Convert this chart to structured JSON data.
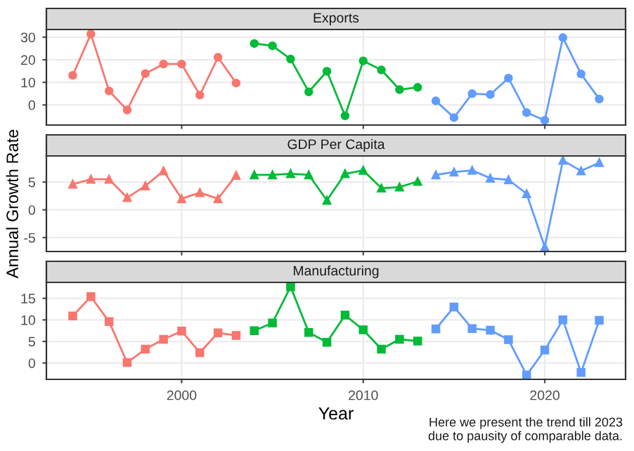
{
  "chart_data": [
    {
      "type": "line",
      "title": "Exports",
      "marker": "circle",
      "grid": true,
      "tick_labels": "y",
      "xlim": [
        1992.55,
        2024.45
      ],
      "xticks": [
        2000,
        2010,
        2020
      ],
      "ylim": [
        -8.9,
        33.4
      ],
      "yticks": [
        0,
        10,
        20,
        30
      ],
      "series": [
        {
          "color": "#f8766d",
          "x": [
            1994,
            1995,
            1996,
            1997,
            1998,
            1999,
            2000,
            2001,
            2002,
            2003
          ],
          "values": [
            13.1,
            31.4,
            6.2,
            -2.2,
            13.9,
            18.1,
            18.1,
            4.4,
            21.1,
            9.7
          ]
        },
        {
          "color": "#00ba38",
          "x": [
            2004,
            2005,
            2006,
            2007,
            2008,
            2009,
            2010,
            2011,
            2012,
            2013
          ],
          "values": [
            27.2,
            26.2,
            20.3,
            5.8,
            14.9,
            -4.8,
            19.5,
            15.5,
            6.8,
            7.8
          ]
        },
        {
          "color": "#619cff",
          "x": [
            2014,
            2015,
            2016,
            2017,
            2018,
            2019,
            2020,
            2021,
            2022,
            2023
          ],
          "values": [
            1.8,
            -5.6,
            5.0,
            4.6,
            11.9,
            -3.4,
            -6.8,
            29.8,
            13.7,
            2.6
          ]
        }
      ]
    },
    {
      "type": "line",
      "title": "GDP Per Capita",
      "ylabel": "Annual Growth Rate",
      "marker": "triangle",
      "grid": true,
      "tick_labels": "y",
      "xlim": [
        1992.55,
        2024.45
      ],
      "xticks": [
        2000,
        2010,
        2020
      ],
      "ylim": [
        -7.5,
        9.7
      ],
      "yticks": [
        -5,
        0,
        5
      ],
      "series": [
        {
          "color": "#f8766d",
          "x": [
            1994,
            1995,
            1996,
            1997,
            1998,
            1999,
            2000,
            2001,
            2002,
            2003
          ],
          "values": [
            4.6,
            5.5,
            5.5,
            2.2,
            4.3,
            7.0,
            2.0,
            3.1,
            2.0,
            6.2
          ]
        },
        {
          "color": "#00ba38",
          "x": [
            2004,
            2005,
            2006,
            2007,
            2008,
            2009,
            2010,
            2011,
            2012,
            2013
          ],
          "values": [
            6.3,
            6.3,
            6.5,
            6.3,
            1.7,
            6.5,
            7.1,
            3.9,
            4.1,
            5.1
          ]
        },
        {
          "color": "#619cff",
          "x": [
            2014,
            2015,
            2016,
            2017,
            2018,
            2019,
            2020,
            2021,
            2022,
            2023
          ],
          "values": [
            6.3,
            6.8,
            7.1,
            5.7,
            5.4,
            2.9,
            -6.7,
            8.9,
            7.0,
            8.5
          ]
        }
      ]
    },
    {
      "type": "line",
      "title": "Manufacturing",
      "xlabel": "Year",
      "marker": "square",
      "grid": true,
      "xlim": [
        1992.55,
        2024.45
      ],
      "xticks": [
        2000,
        2010,
        2020
      ],
      "ylim": [
        -3.8,
        18.7
      ],
      "yticks": [
        0,
        5,
        10,
        15
      ],
      "annotations": [
        "Here we present the trend till 2023\ndue to pausity of comparable data."
      ],
      "series": [
        {
          "color": "#f8766d",
          "x": [
            1994,
            1995,
            1996,
            1997,
            1998,
            1999,
            2000,
            2001,
            2002,
            2003
          ],
          "values": [
            10.9,
            15.4,
            9.6,
            0.1,
            3.2,
            5.5,
            7.4,
            2.4,
            7.0,
            6.4
          ]
        },
        {
          "color": "#00ba38",
          "x": [
            2004,
            2005,
            2006,
            2007,
            2008,
            2009,
            2010,
            2011,
            2012,
            2013
          ],
          "values": [
            7.5,
            9.3,
            17.7,
            7.1,
            4.8,
            11.1,
            7.7,
            3.2,
            5.5,
            5.1
          ]
        },
        {
          "color": "#619cff",
          "x": [
            2014,
            2015,
            2016,
            2017,
            2018,
            2019,
            2020,
            2021,
            2022,
            2023
          ],
          "values": [
            7.9,
            13.0,
            8.0,
            7.6,
            5.4,
            -2.8,
            3.0,
            10.0,
            -2.2,
            9.9
          ]
        }
      ]
    }
  ]
}
